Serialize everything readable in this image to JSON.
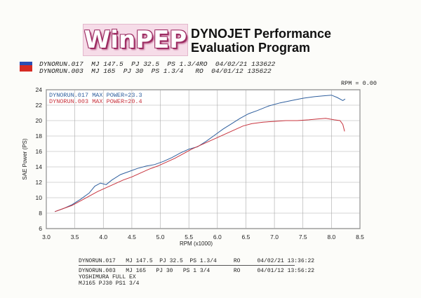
{
  "logo": {
    "text": "WinPEP"
  },
  "title": {
    "line1": "DYNOJET Performance",
    "line2": "Evaluation Program"
  },
  "header_runs": [
    "DYNORUN.017  MJ 147.5  PJ 32.5  PS 1.3/4RO  04/02/21 133622",
    "DYNORUN.003  MJ 165  PJ 30  PS 1.3/4   RO  04/01/12 135622"
  ],
  "rpm_readout": "RPM = 0.00",
  "footer": {
    "run1": "DYNORUN.017   MJ 147.5  PJ 32.5  PS 1.3/4     RO     04/02/21 13:36:22",
    "run2": "DYNORUN.003   MJ 165   PJ 30   PS 1 3/4       RO     04/01/12 13:56:22",
    "note1": "YOSHIMURA FULL EX",
    "note2": "MJ165 PJ30 PS1 3/4"
  },
  "chart_data": {
    "type": "line",
    "xlabel": "RPM (x1000)",
    "ylabel": "SAE Power (PS)",
    "xlim": [
      3.0,
      8.5
    ],
    "ylim": [
      6,
      24
    ],
    "xticks": [
      "3.0",
      "3.5",
      "4.0",
      "4.5",
      "5.0",
      "5.5",
      "6.0",
      "6.5",
      "7.0",
      "7.5",
      "8.0",
      "8.5"
    ],
    "yticks": [
      "6",
      "8",
      "10",
      "12",
      "14",
      "16",
      "18",
      "20",
      "22",
      "24"
    ],
    "grid": true,
    "legend": [
      {
        "text": "DYNORUN.017  MAX POWER=23.3",
        "color": "#2f5f9e"
      },
      {
        "text": "DYNORUN.003  MAX POWER=20.4",
        "color": "#c8343e"
      }
    ],
    "series": [
      {
        "name": "DYNORUN.017",
        "color": "#2f5f9e",
        "x": [
          3.15,
          3.3,
          3.45,
          3.6,
          3.75,
          3.85,
          3.95,
          4.05,
          4.15,
          4.3,
          4.45,
          4.6,
          4.75,
          4.9,
          5.05,
          5.2,
          5.35,
          5.5,
          5.65,
          5.8,
          5.95,
          6.1,
          6.25,
          6.4,
          6.55,
          6.7,
          6.9,
          7.1,
          7.3,
          7.5,
          7.7,
          7.85,
          8.0,
          8.1,
          8.2,
          8.24
        ],
        "y": [
          8.2,
          8.6,
          9.1,
          9.8,
          10.6,
          11.5,
          11.9,
          11.7,
          12.3,
          13.0,
          13.4,
          13.8,
          14.1,
          14.3,
          14.7,
          15.2,
          15.8,
          16.3,
          16.6,
          17.3,
          18.1,
          18.9,
          19.6,
          20.3,
          20.9,
          21.3,
          21.9,
          22.3,
          22.6,
          22.9,
          23.1,
          23.2,
          23.3,
          23.0,
          22.6,
          22.8
        ]
      },
      {
        "name": "DYNORUN.003",
        "color": "#c8343e",
        "x": [
          3.15,
          3.3,
          3.45,
          3.6,
          3.75,
          3.9,
          4.05,
          4.2,
          4.35,
          4.5,
          4.65,
          4.8,
          4.95,
          5.1,
          5.25,
          5.4,
          5.55,
          5.7,
          5.85,
          6.0,
          6.15,
          6.3,
          6.45,
          6.6,
          6.8,
          7.0,
          7.2,
          7.4,
          7.6,
          7.75,
          7.9,
          8.05,
          8.15,
          8.2,
          8.23
        ],
        "y": [
          8.2,
          8.6,
          9.0,
          9.6,
          10.2,
          10.8,
          11.3,
          11.8,
          12.3,
          12.7,
          13.2,
          13.7,
          14.1,
          14.6,
          15.1,
          15.7,
          16.3,
          16.8,
          17.3,
          17.8,
          18.3,
          18.8,
          19.3,
          19.6,
          19.8,
          19.9,
          20.0,
          20.0,
          20.1,
          20.2,
          20.3,
          20.1,
          20.0,
          19.5,
          18.6
        ]
      }
    ]
  }
}
